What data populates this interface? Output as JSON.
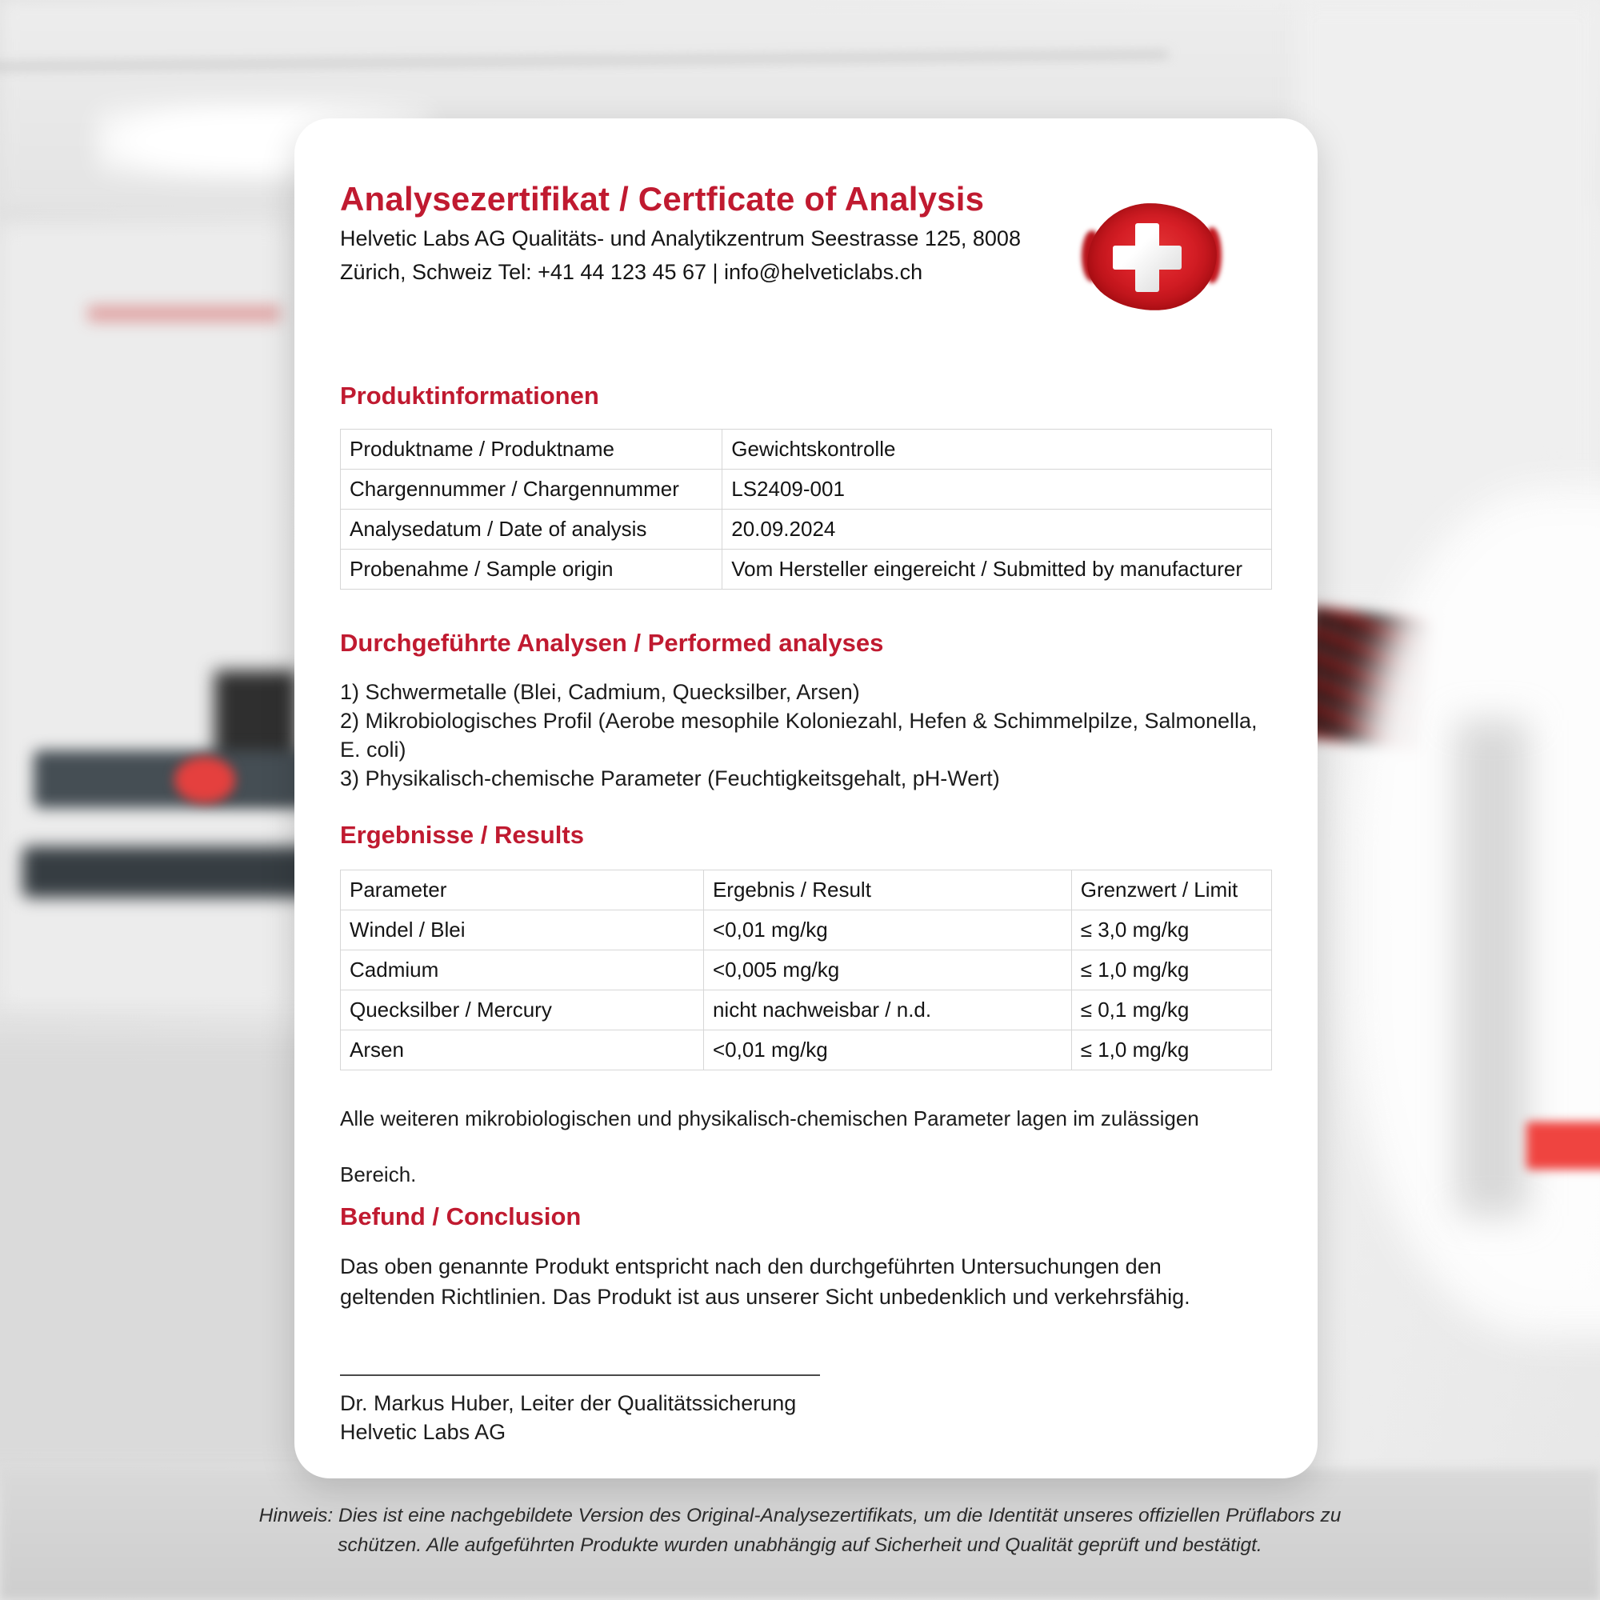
{
  "doc": {
    "title": "Analysezertifikat / Certficate of Analysis",
    "address_line1": "Helvetic Labs AG Qualitäts- und Analytikzentrum Seestrasse 125, 8008",
    "address_line2": "Zürich, Schweiz Tel: +41 44 123 45 67 | info@helveticlabs.ch",
    "logo": "swiss-flag-paint-swatch",
    "product_info": {
      "heading": "Produktinformationen",
      "rows": [
        {
          "label": "Produktname / Produktname",
          "value": "Gewichtskontrolle"
        },
        {
          "label": "Chargennummer / Chargennummer",
          "value": "LS2409-001"
        },
        {
          "label": "Analysedatum / Date of analysis",
          "value": "20.09.2024"
        },
        {
          "label": "Probenahme / Sample origin",
          "value": "Vom Hersteller eingereicht / Submitted by manufacturer"
        }
      ]
    },
    "analyses": {
      "heading": "Durchgeführte Analysen / Performed analyses",
      "items": [
        "1) Schwermetalle (Blei, Cadmium, Quecksilber, Arsen)",
        "2) Mikrobiologisches Profil (Aerobe mesophile Koloniezahl, Hefen & Schimmelpilze, Salmonella, E. coli)",
        "3) Physikalisch-chemische Parameter (Feuchtigkeitsgehalt, pH-Wert)"
      ]
    },
    "results": {
      "heading": "Ergebnisse / Results",
      "table": {
        "headers": [
          "Parameter",
          "Ergebnis / Result",
          "Grenzwert / Limit"
        ],
        "rows": [
          [
            "Windel / Blei",
            "<0,01 mg/kg",
            "≤ 3,0 mg/kg"
          ],
          [
            "Cadmium",
            "<0,005 mg/kg",
            "≤ 1,0 mg/kg"
          ],
          [
            "Quecksilber / Mercury",
            "nicht nachweisbar / n.d.",
            "≤ 0,1 mg/kg"
          ],
          [
            "Arsen",
            "<0,01 mg/kg",
            "≤ 1,0 mg/kg"
          ]
        ]
      },
      "note_line1": "Alle weiteren mikrobiologischen und physikalisch-chemischen Parameter lagen im zulässigen",
      "note_line2": "Bereich."
    },
    "conclusion": {
      "heading": "Befund / Conclusion",
      "text": "Das oben genannte Produkt entspricht nach den durchgeführten Untersuchungen den geltenden Richtlinien. Das Produkt ist aus unserer Sicht unbedenklich und verkehrsfähig."
    },
    "signature": {
      "name_title": "Dr. Markus Huber, Leiter der Qualitätssicherung",
      "company": "Helvetic Labs AG"
    }
  },
  "footer": {
    "note_line1": "Hinweis: Dies ist eine nachgebildete Version des Original-Analysezertifikats, um die Identität unseres offiziellen Prüflabors zu",
    "note_line2": "schützen. Alle aufgeführten Produkte wurden unabhängig auf Sicherheit und Qualität geprüft und bestätigt."
  },
  "colors": {
    "accent_red": "#c01a30",
    "flag_red": "#d61f26",
    "text": "#1c1c1c",
    "table_border": "#d6d6d6",
    "card_bg": "#ffffff"
  }
}
